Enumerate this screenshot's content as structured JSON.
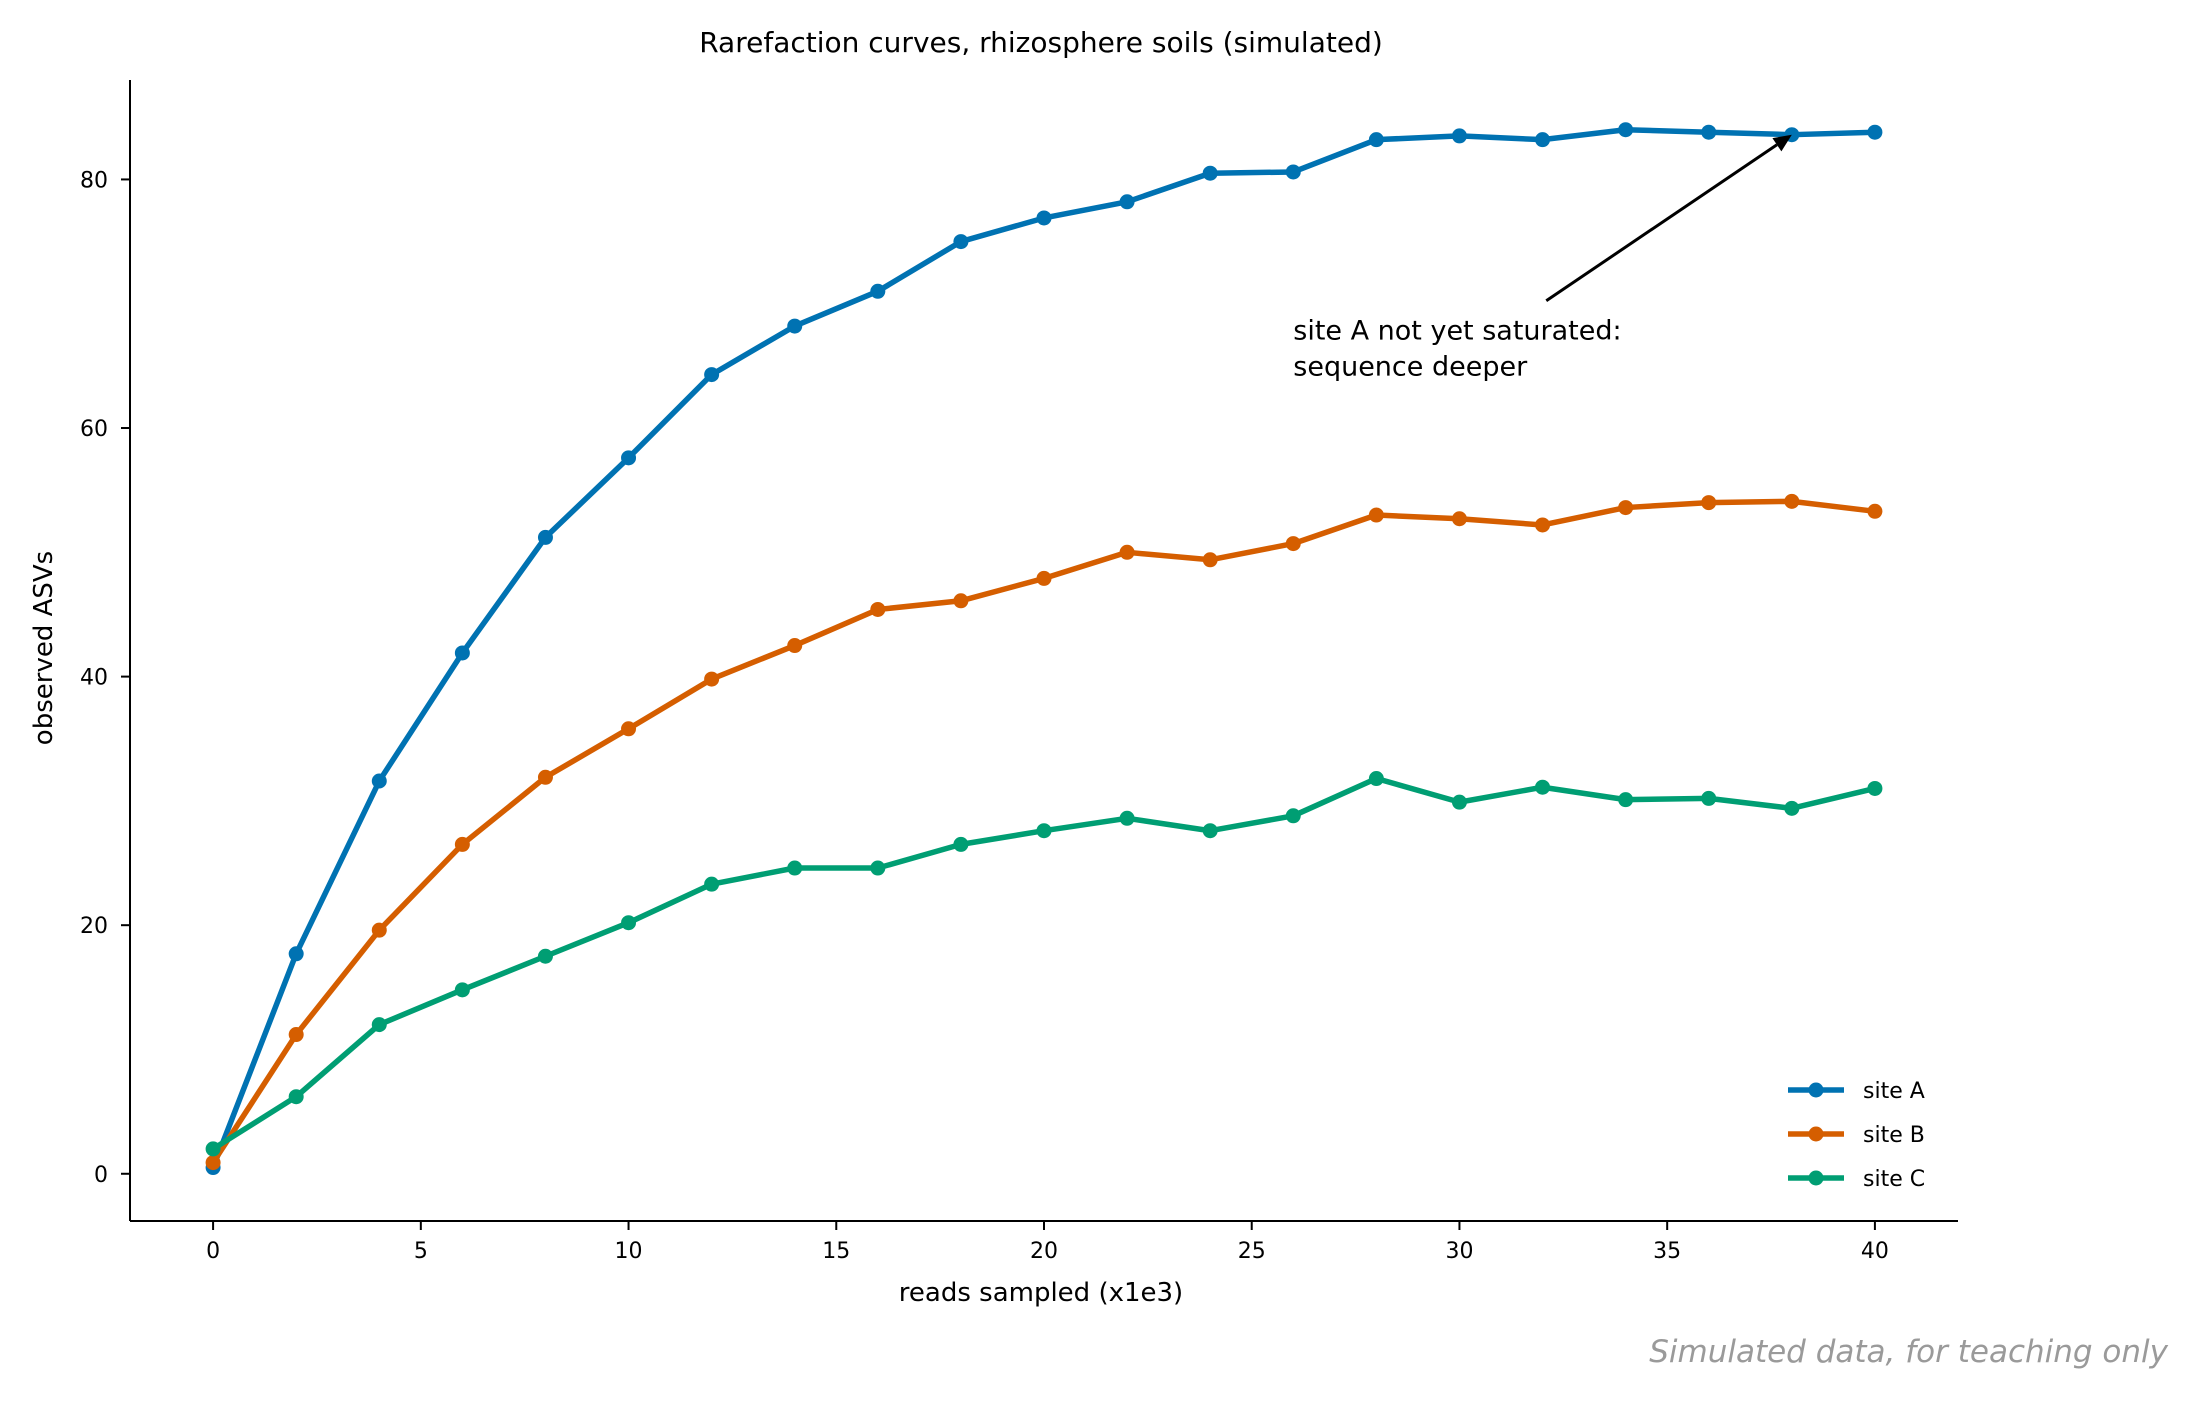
{
  "chart_data": {
    "type": "line",
    "title": "Rarefaction curves, rhizosphere soils (simulated)",
    "xlabel": "reads sampled (x1e3)",
    "ylabel": "observed ASVs",
    "xlim": [
      -2,
      42
    ],
    "ylim": [
      -3.8,
      88
    ],
    "xticks": [
      0,
      5,
      10,
      15,
      20,
      25,
      30,
      35,
      40
    ],
    "yticks": [
      0,
      20,
      40,
      60,
      80
    ],
    "grid": false,
    "legend_position": "lower-right",
    "x": [
      0,
      2,
      4,
      6,
      8,
      10,
      12,
      14,
      16,
      18,
      20,
      22,
      24,
      26,
      28,
      30,
      32,
      34,
      36,
      38,
      40
    ],
    "series": [
      {
        "name": "site A",
        "color": "#0072b2",
        "values": [
          0.5,
          17.7,
          31.6,
          41.9,
          51.2,
          57.6,
          64.3,
          68.2,
          71.0,
          75.0,
          76.9,
          78.2,
          80.5,
          80.6,
          83.2,
          83.5,
          83.2,
          84.0,
          83.8,
          83.6,
          83.8
        ]
      },
      {
        "name": "site B",
        "color": "#d55e00",
        "values": [
          0.9,
          11.2,
          19.6,
          26.5,
          31.9,
          35.8,
          39.8,
          42.5,
          45.4,
          46.1,
          47.9,
          50.0,
          49.4,
          50.7,
          53.0,
          52.7,
          52.2,
          53.6,
          54.0,
          54.1,
          53.3
        ]
      },
      {
        "name": "site C",
        "color": "#009e73",
        "values": [
          2.0,
          6.2,
          12.0,
          14.8,
          17.5,
          20.2,
          23.3,
          24.6,
          24.6,
          26.5,
          27.6,
          28.6,
          27.6,
          28.8,
          31.8,
          29.9,
          31.1,
          30.1,
          30.2,
          29.4,
          31.0
        ]
      }
    ],
    "annotation": {
      "lines": [
        "site A not yet saturated:",
        "sequence deeper"
      ],
      "text_at": [
        26,
        70
      ],
      "arrow_to": [
        38,
        83.6
      ]
    },
    "watermark": "Simulated data, for teaching only"
  }
}
